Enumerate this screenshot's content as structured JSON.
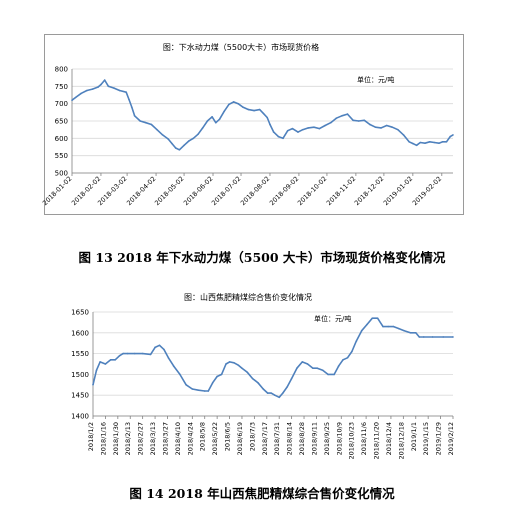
{
  "captions": {
    "fig13": "图 13 2018 年下水动力煤（5500 大卡）市场现货价格变化情况",
    "fig14": "图 14 2018 年山西焦肥精煤综合售价变化情况"
  },
  "chart_data": [
    {
      "type": "line",
      "title": "图：下水动力煤（5500大卡）市场现货价格",
      "unit_label": "单位：元/吨",
      "ylim": [
        500,
        800
      ],
      "yticks": [
        500,
        550,
        600,
        650,
        700,
        750,
        800
      ],
      "xlim": [
        "2018-01-02",
        "2019-02-14"
      ],
      "xticks": [
        "2018-01-02",
        "2018-02-02",
        "2018-03-02",
        "2018-04-02",
        "2018-05-02",
        "2018-06-02",
        "2018-07-02",
        "2018-08-02",
        "2018-09-02",
        "2018-10-02",
        "2018-11-02",
        "2018-12-02",
        "2019-01-02",
        "2019-02-02"
      ],
      "grid": true,
      "line_color": "#4f81bd",
      "x": [
        "2018-01-02",
        "2018-01-06",
        "2018-01-12",
        "2018-01-18",
        "2018-01-24",
        "2018-01-30",
        "2018-02-02",
        "2018-02-06",
        "2018-02-10",
        "2018-02-16",
        "2018-02-22",
        "2018-03-01",
        "2018-03-04",
        "2018-03-07",
        "2018-03-10",
        "2018-03-16",
        "2018-03-22",
        "2018-03-28",
        "2018-04-03",
        "2018-04-09",
        "2018-04-15",
        "2018-04-19",
        "2018-04-23",
        "2018-04-27",
        "2018-05-02",
        "2018-05-07",
        "2018-05-12",
        "2018-05-17",
        "2018-05-22",
        "2018-05-27",
        "2018-06-01",
        "2018-06-05",
        "2018-06-09",
        "2018-06-14",
        "2018-06-19",
        "2018-06-24",
        "2018-06-29",
        "2018-07-04",
        "2018-07-10",
        "2018-07-16",
        "2018-07-22",
        "2018-07-26",
        "2018-07-30",
        "2018-08-02",
        "2018-08-06",
        "2018-08-11",
        "2018-08-16",
        "2018-08-21",
        "2018-08-26",
        "2018-09-01",
        "2018-09-06",
        "2018-09-12",
        "2018-09-18",
        "2018-09-24",
        "2018-09-30",
        "2018-10-06",
        "2018-10-12",
        "2018-10-18",
        "2018-10-24",
        "2018-10-30",
        "2018-11-05",
        "2018-11-11",
        "2018-11-17",
        "2018-11-23",
        "2018-11-29",
        "2018-12-05",
        "2018-12-11",
        "2018-12-17",
        "2018-12-23",
        "2018-12-29",
        "2019-01-02",
        "2019-01-06",
        "2019-01-10",
        "2019-01-15",
        "2019-01-20",
        "2019-01-25",
        "2019-01-30",
        "2019-02-03",
        "2019-02-07",
        "2019-02-11",
        "2019-02-14"
      ],
      "values": [
        710,
        718,
        730,
        738,
        742,
        748,
        755,
        768,
        750,
        745,
        738,
        733,
        712,
        690,
        665,
        650,
        645,
        640,
        625,
        610,
        598,
        585,
        572,
        567,
        580,
        592,
        600,
        612,
        630,
        650,
        662,
        645,
        655,
        678,
        698,
        705,
        700,
        690,
        683,
        680,
        683,
        672,
        660,
        640,
        618,
        605,
        600,
        622,
        628,
        618,
        625,
        630,
        632,
        628,
        637,
        645,
        658,
        665,
        670,
        652,
        650,
        652,
        640,
        632,
        630,
        637,
        632,
        625,
        610,
        590,
        585,
        580,
        588,
        586,
        590,
        588,
        586,
        590,
        590,
        605,
        610
      ]
    },
    {
      "type": "line",
      "title": "图：山西焦肥精煤综合售价变化情况",
      "unit_label": "单位：元/吨",
      "ylim": [
        1400,
        1650
      ],
      "yticks": [
        1400,
        1450,
        1500,
        1550,
        1600,
        1650
      ],
      "xlim": [
        "2018-01-02",
        "2019-02-12"
      ],
      "xticks": [
        "2018/1/2",
        "2018/1/16",
        "2018/1/30",
        "2018/2/13",
        "2018/2/27",
        "2018/3/13",
        "2018/3/27",
        "2018/4/10",
        "2018/4/24",
        "2018/5/8",
        "2018/5/22",
        "2018/6/5",
        "2018/6/19",
        "2018/7/3",
        "2018/7/17",
        "2018/7/31",
        "2018/8/14",
        "2018/8/28",
        "2018/9/11",
        "2018/9/25",
        "2018/10/9",
        "2018/10/23",
        "2018/11/6",
        "2018/11/20",
        "2018/12/4",
        "2018/12/18",
        "2019/1/1",
        "2019/1/15",
        "2019/1/29",
        "2019/2/12"
      ],
      "grid": true,
      "line_color": "#4f81bd",
      "x": [
        "2018-01-02",
        "2018-01-06",
        "2018-01-10",
        "2018-01-16",
        "2018-01-22",
        "2018-01-27",
        "2018-02-01",
        "2018-02-05",
        "2018-02-10",
        "2018-02-18",
        "2018-02-27",
        "2018-03-08",
        "2018-03-13",
        "2018-03-18",
        "2018-03-23",
        "2018-03-28",
        "2018-04-03",
        "2018-04-10",
        "2018-04-17",
        "2018-04-24",
        "2018-05-01",
        "2018-05-08",
        "2018-05-12",
        "2018-05-17",
        "2018-05-22",
        "2018-05-27",
        "2018-06-01",
        "2018-06-05",
        "2018-06-10",
        "2018-06-15",
        "2018-06-19",
        "2018-06-25",
        "2018-07-01",
        "2018-07-07",
        "2018-07-13",
        "2018-07-18",
        "2018-07-22",
        "2018-07-26",
        "2018-07-31",
        "2018-08-04",
        "2018-08-09",
        "2018-08-14",
        "2018-08-20",
        "2018-08-26",
        "2018-09-01",
        "2018-09-07",
        "2018-09-12",
        "2018-09-18",
        "2018-09-24",
        "2018-10-01",
        "2018-10-06",
        "2018-10-11",
        "2018-10-16",
        "2018-10-21",
        "2018-10-26",
        "2018-11-01",
        "2018-11-07",
        "2018-11-13",
        "2018-11-19",
        "2018-11-25",
        "2018-12-01",
        "2018-12-07",
        "2018-12-13",
        "2018-12-19",
        "2018-12-26",
        "2019-01-01",
        "2019-01-05",
        "2019-01-10",
        "2019-01-20",
        "2019-02-01",
        "2019-02-12"
      ],
      "values": [
        1475,
        1510,
        1530,
        1525,
        1535,
        1535,
        1545,
        1550,
        1550,
        1550,
        1550,
        1548,
        1565,
        1570,
        1560,
        1540,
        1520,
        1500,
        1475,
        1465,
        1462,
        1460,
        1460,
        1480,
        1495,
        1500,
        1525,
        1530,
        1528,
        1522,
        1515,
        1505,
        1490,
        1480,
        1465,
        1455,
        1455,
        1450,
        1445,
        1455,
        1470,
        1490,
        1515,
        1530,
        1525,
        1515,
        1515,
        1510,
        1500,
        1500,
        1520,
        1535,
        1540,
        1555,
        1580,
        1605,
        1620,
        1635,
        1635,
        1615,
        1615,
        1615,
        1610,
        1605,
        1600,
        1600,
        1590,
        1590,
        1590,
        1590,
        1590
      ]
    }
  ]
}
